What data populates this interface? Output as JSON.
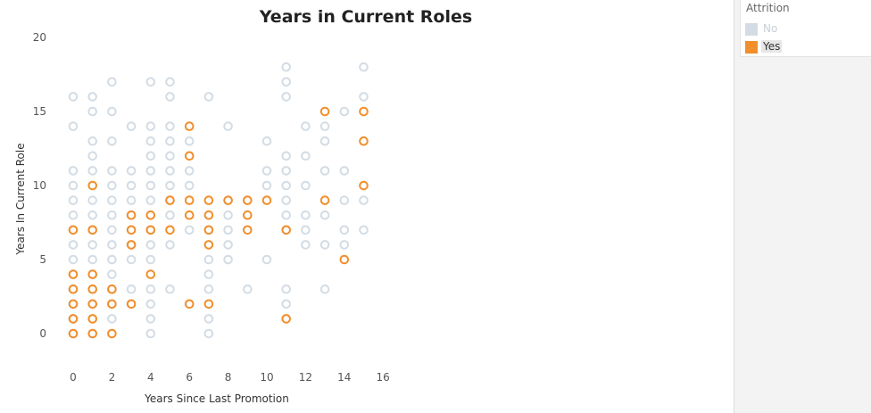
{
  "chart_data": {
    "type": "scatter",
    "title": "Years in Current Roles",
    "xlabel": "Years Since Last Promotion",
    "ylabel": "Years In Current Role",
    "xlim": [
      -1,
      17
    ],
    "ylim": [
      -2,
      21
    ],
    "xticks": [
      0,
      2,
      4,
      6,
      8,
      10,
      12,
      14,
      16
    ],
    "yticks": [
      0,
      5,
      10,
      15,
      20
    ],
    "grid": false,
    "legend": "right",
    "series": [
      {
        "name": "No",
        "color": "#d3dce4",
        "points": [
          [
            0,
            0
          ],
          [
            0,
            1
          ],
          [
            0,
            2
          ],
          [
            0,
            3
          ],
          [
            0,
            4
          ],
          [
            0,
            5
          ],
          [
            0,
            6
          ],
          [
            0,
            7
          ],
          [
            0,
            8
          ],
          [
            0,
            9
          ],
          [
            0,
            10
          ],
          [
            0,
            11
          ],
          [
            0,
            14
          ],
          [
            0,
            16
          ],
          [
            1,
            0
          ],
          [
            1,
            1
          ],
          [
            1,
            2
          ],
          [
            1,
            3
          ],
          [
            1,
            4
          ],
          [
            1,
            5
          ],
          [
            1,
            6
          ],
          [
            1,
            7
          ],
          [
            1,
            8
          ],
          [
            1,
            9
          ],
          [
            1,
            11
          ],
          [
            1,
            12
          ],
          [
            1,
            13
          ],
          [
            1,
            15
          ],
          [
            1,
            16
          ],
          [
            2,
            1
          ],
          [
            2,
            2
          ],
          [
            2,
            3
          ],
          [
            2,
            4
          ],
          [
            2,
            5
          ],
          [
            2,
            6
          ],
          [
            2,
            7
          ],
          [
            2,
            8
          ],
          [
            2,
            9
          ],
          [
            2,
            10
          ],
          [
            2,
            11
          ],
          [
            2,
            13
          ],
          [
            2,
            15
          ],
          [
            2,
            17
          ],
          [
            3,
            2
          ],
          [
            3,
            3
          ],
          [
            3,
            5
          ],
          [
            3,
            6
          ],
          [
            3,
            7
          ],
          [
            3,
            8
          ],
          [
            3,
            9
          ],
          [
            3,
            10
          ],
          [
            3,
            11
          ],
          [
            3,
            14
          ],
          [
            4,
            0
          ],
          [
            4,
            1
          ],
          [
            4,
            2
          ],
          [
            4,
            3
          ],
          [
            4,
            5
          ],
          [
            4,
            6
          ],
          [
            4,
            7
          ],
          [
            4,
            8
          ],
          [
            4,
            9
          ],
          [
            4,
            10
          ],
          [
            4,
            11
          ],
          [
            4,
            12
          ],
          [
            4,
            13
          ],
          [
            4,
            14
          ],
          [
            4,
            17
          ],
          [
            5,
            3
          ],
          [
            5,
            6
          ],
          [
            5,
            8
          ],
          [
            5,
            9
          ],
          [
            5,
            10
          ],
          [
            5,
            11
          ],
          [
            5,
            12
          ],
          [
            5,
            13
          ],
          [
            5,
            14
          ],
          [
            5,
            16
          ],
          [
            5,
            17
          ],
          [
            6,
            7
          ],
          [
            6,
            10
          ],
          [
            6,
            11
          ],
          [
            6,
            13
          ],
          [
            7,
            0
          ],
          [
            7,
            1
          ],
          [
            7,
            3
          ],
          [
            7,
            4
          ],
          [
            7,
            5
          ],
          [
            7,
            7
          ],
          [
            7,
            16
          ],
          [
            8,
            5
          ],
          [
            8,
            6
          ],
          [
            8,
            7
          ],
          [
            8,
            8
          ],
          [
            8,
            9
          ],
          [
            8,
            14
          ],
          [
            9,
            3
          ],
          [
            9,
            9
          ],
          [
            10,
            5
          ],
          [
            10,
            10
          ],
          [
            10,
            11
          ],
          [
            10,
            13
          ],
          [
            11,
            2
          ],
          [
            11,
            3
          ],
          [
            11,
            7
          ],
          [
            11,
            8
          ],
          [
            11,
            9
          ],
          [
            11,
            10
          ],
          [
            11,
            11
          ],
          [
            11,
            12
          ],
          [
            11,
            16
          ],
          [
            11,
            17
          ],
          [
            11,
            18
          ],
          [
            12,
            6
          ],
          [
            12,
            7
          ],
          [
            12,
            8
          ],
          [
            12,
            10
          ],
          [
            12,
            12
          ],
          [
            12,
            14
          ],
          [
            13,
            3
          ],
          [
            13,
            6
          ],
          [
            13,
            8
          ],
          [
            13,
            11
          ],
          [
            13,
            13
          ],
          [
            13,
            14
          ],
          [
            14,
            6
          ],
          [
            14,
            7
          ],
          [
            14,
            9
          ],
          [
            14,
            11
          ],
          [
            14,
            15
          ],
          [
            15,
            7
          ],
          [
            15,
            9
          ],
          [
            15,
            16
          ],
          [
            15,
            18
          ]
        ]
      },
      {
        "name": "Yes",
        "color": "#f28e2b",
        "points": [
          [
            0,
            0
          ],
          [
            0,
            1
          ],
          [
            0,
            2
          ],
          [
            0,
            3
          ],
          [
            0,
            4
          ],
          [
            0,
            7
          ],
          [
            1,
            0
          ],
          [
            1,
            1
          ],
          [
            1,
            2
          ],
          [
            1,
            3
          ],
          [
            1,
            4
          ],
          [
            1,
            7
          ],
          [
            1,
            10
          ],
          [
            2,
            0
          ],
          [
            2,
            2
          ],
          [
            2,
            3
          ],
          [
            3,
            2
          ],
          [
            3,
            6
          ],
          [
            3,
            7
          ],
          [
            3,
            8
          ],
          [
            4,
            4
          ],
          [
            4,
            7
          ],
          [
            4,
            8
          ],
          [
            5,
            7
          ],
          [
            5,
            9
          ],
          [
            6,
            2
          ],
          [
            6,
            8
          ],
          [
            6,
            9
          ],
          [
            6,
            12
          ],
          [
            6,
            14
          ],
          [
            7,
            2
          ],
          [
            7,
            6
          ],
          [
            7,
            7
          ],
          [
            7,
            8
          ],
          [
            7,
            9
          ],
          [
            8,
            9
          ],
          [
            9,
            7
          ],
          [
            9,
            8
          ],
          [
            9,
            9
          ],
          [
            10,
            9
          ],
          [
            11,
            1
          ],
          [
            11,
            7
          ],
          [
            13,
            9
          ],
          [
            13,
            15
          ],
          [
            14,
            5
          ],
          [
            15,
            10
          ],
          [
            15,
            13
          ],
          [
            15,
            15
          ]
        ]
      }
    ]
  },
  "legend": {
    "title": "Attrition",
    "items": [
      {
        "label": "No",
        "color": "#d3dce4",
        "text_color": "#c8ced6",
        "highlight": false
      },
      {
        "label": "Yes",
        "color": "#f28e2b",
        "text_color": "#333333",
        "highlight": true
      }
    ]
  }
}
